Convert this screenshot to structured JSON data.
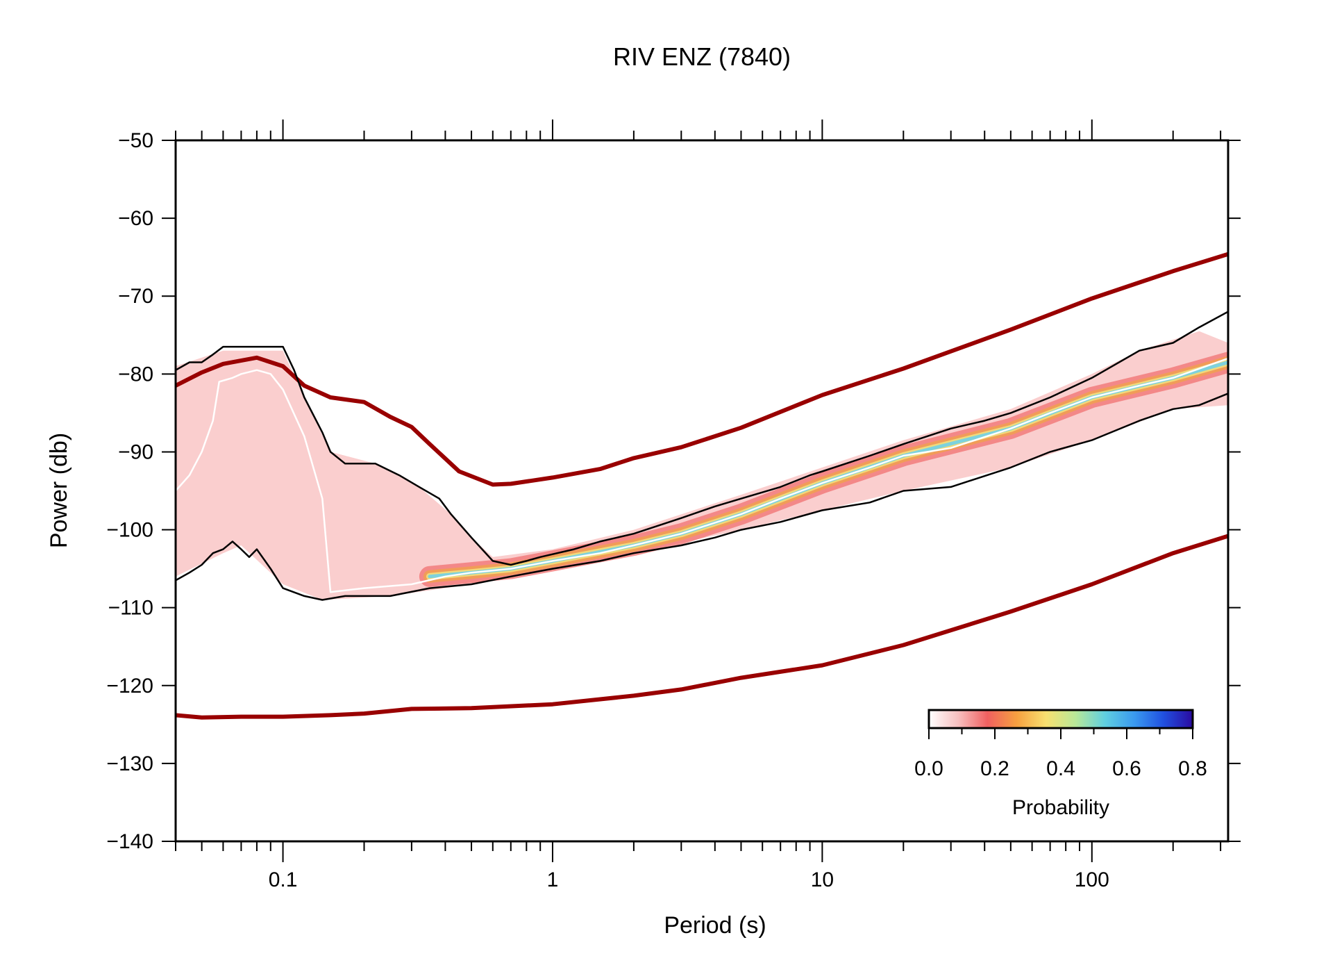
{
  "chart_data": {
    "type": "line",
    "title": "RIV ENZ (7840)",
    "xlabel": "Period (s)",
    "ylabel": "Power (db)",
    "x_scale": "log",
    "xlim": [
      0.04,
      320
    ],
    "ylim": [
      -140,
      -50
    ],
    "x_tick_values": [
      0.1,
      1,
      10,
      100
    ],
    "x_tick_labels": [
      "0.1",
      "1",
      "10",
      "100"
    ],
    "y_ticks": [
      -50,
      -60,
      -70,
      -80,
      -90,
      -100,
      -110,
      -120,
      -130,
      -140
    ],
    "y_tick_labels": [
      "−50",
      "−60",
      "−70",
      "−80",
      "−90",
      "−100",
      "−110",
      "−120",
      "−130",
      "−140"
    ],
    "grid": false,
    "series": [
      {
        "role": "high-noise-model",
        "color": "#990000",
        "points": [
          [
            0.04,
            -81.5
          ],
          [
            0.05,
            -79.8
          ],
          [
            0.06,
            -78.7
          ],
          [
            0.08,
            -77.9
          ],
          [
            0.1,
            -79
          ],
          [
            0.12,
            -81.5
          ],
          [
            0.15,
            -83
          ],
          [
            0.2,
            -83.6
          ],
          [
            0.25,
            -85.5
          ],
          [
            0.3,
            -86.8
          ],
          [
            0.35,
            -89
          ],
          [
            0.45,
            -92.5
          ],
          [
            0.6,
            -94.2
          ],
          [
            0.7,
            -94.1
          ],
          [
            1,
            -93.3
          ],
          [
            1.5,
            -92.2
          ],
          [
            2,
            -90.8
          ],
          [
            3,
            -89.4
          ],
          [
            5,
            -86.9
          ],
          [
            10,
            -82.7
          ],
          [
            20,
            -79.3
          ],
          [
            50,
            -74.3
          ],
          [
            100,
            -70.3
          ],
          [
            200,
            -66.8
          ],
          [
            320,
            -64.6
          ]
        ]
      },
      {
        "role": "low-noise-model",
        "color": "#990000",
        "points": [
          [
            0.04,
            -123.8
          ],
          [
            0.05,
            -124.1
          ],
          [
            0.07,
            -124
          ],
          [
            0.1,
            -124
          ],
          [
            0.15,
            -123.8
          ],
          [
            0.2,
            -123.6
          ],
          [
            0.3,
            -123
          ],
          [
            0.5,
            -122.9
          ],
          [
            1,
            -122.4
          ],
          [
            2,
            -121.3
          ],
          [
            3,
            -120.5
          ],
          [
            5,
            -119
          ],
          [
            10,
            -117.4
          ],
          [
            20,
            -114.8
          ],
          [
            50,
            -110.5
          ],
          [
            100,
            -107
          ],
          [
            200,
            -103
          ],
          [
            320,
            -100.8
          ]
        ]
      },
      {
        "role": "percentile-upper",
        "color": "#000000",
        "points": [
          [
            0.04,
            -79.5
          ],
          [
            0.045,
            -78.5
          ],
          [
            0.05,
            -78.5
          ],
          [
            0.055,
            -77.5
          ],
          [
            0.06,
            -76.5
          ],
          [
            0.07,
            -76.5
          ],
          [
            0.09,
            -76.5
          ],
          [
            0.1,
            -76.5
          ],
          [
            0.11,
            -79.5
          ],
          [
            0.12,
            -83
          ],
          [
            0.14,
            -87.5
          ],
          [
            0.15,
            -90
          ],
          [
            0.17,
            -91.5
          ],
          [
            0.22,
            -91.5
          ],
          [
            0.27,
            -93
          ],
          [
            0.32,
            -94.5
          ],
          [
            0.38,
            -96
          ],
          [
            0.42,
            -98
          ],
          [
            0.5,
            -101
          ],
          [
            0.6,
            -104
          ],
          [
            0.7,
            -104.5
          ],
          [
            0.8,
            -104
          ],
          [
            0.9,
            -103.5
          ],
          [
            1.2,
            -102.5
          ],
          [
            1.5,
            -101.5
          ],
          [
            2,
            -100.5
          ],
          [
            3,
            -98.5
          ],
          [
            4,
            -97
          ],
          [
            5,
            -96
          ],
          [
            7,
            -94.5
          ],
          [
            9,
            -93
          ],
          [
            10,
            -92.5
          ],
          [
            15,
            -90.5
          ],
          [
            20,
            -89
          ],
          [
            30,
            -87
          ],
          [
            40,
            -86
          ],
          [
            50,
            -85
          ],
          [
            70,
            -83
          ],
          [
            100,
            -80.5
          ],
          [
            150,
            -77
          ],
          [
            200,
            -76
          ],
          [
            250,
            -74
          ],
          [
            320,
            -72
          ]
        ]
      },
      {
        "role": "percentile-lower",
        "color": "#000000",
        "points": [
          [
            0.04,
            -106.5
          ],
          [
            0.045,
            -105.5
          ],
          [
            0.05,
            -104.5
          ],
          [
            0.055,
            -103
          ],
          [
            0.06,
            -102.5
          ],
          [
            0.065,
            -101.5
          ],
          [
            0.07,
            -102.5
          ],
          [
            0.075,
            -103.5
          ],
          [
            0.08,
            -102.5
          ],
          [
            0.09,
            -105
          ],
          [
            0.1,
            -107.5
          ],
          [
            0.12,
            -108.5
          ],
          [
            0.14,
            -109
          ],
          [
            0.17,
            -108.5
          ],
          [
            0.25,
            -108.5
          ],
          [
            0.35,
            -107.5
          ],
          [
            0.5,
            -107
          ],
          [
            0.7,
            -106
          ],
          [
            1,
            -105
          ],
          [
            1.5,
            -104
          ],
          [
            2,
            -103
          ],
          [
            3,
            -102
          ],
          [
            4,
            -101
          ],
          [
            5,
            -100
          ],
          [
            7,
            -99
          ],
          [
            10,
            -97.5
          ],
          [
            15,
            -96.5
          ],
          [
            20,
            -95
          ],
          [
            30,
            -94.5
          ],
          [
            50,
            -92
          ],
          [
            70,
            -90
          ],
          [
            100,
            -88.5
          ],
          [
            150,
            -86
          ],
          [
            200,
            -84.5
          ],
          [
            250,
            -84
          ],
          [
            320,
            -82.5
          ]
        ]
      },
      {
        "role": "mode",
        "color": "#ffffff",
        "points": [
          [
            0.04,
            -95
          ],
          [
            0.045,
            -93
          ],
          [
            0.05,
            -90
          ],
          [
            0.055,
            -86
          ],
          [
            0.058,
            -81
          ],
          [
            0.065,
            -80.5
          ],
          [
            0.07,
            -80
          ],
          [
            0.08,
            -79.5
          ],
          [
            0.09,
            -80
          ],
          [
            0.1,
            -82
          ],
          [
            0.12,
            -88
          ],
          [
            0.14,
            -96
          ],
          [
            0.15,
            -108
          ],
          [
            0.2,
            -107.5
          ],
          [
            0.3,
            -107
          ],
          [
            0.4,
            -106
          ],
          [
            0.5,
            -105.5
          ],
          [
            0.7,
            -105
          ],
          [
            1,
            -104
          ],
          [
            1.5,
            -103
          ],
          [
            2,
            -102
          ],
          [
            3,
            -100.5
          ],
          [
            5,
            -98
          ],
          [
            7,
            -96
          ],
          [
            10,
            -94
          ],
          [
            15,
            -92
          ],
          [
            20,
            -90.5
          ],
          [
            30,
            -89.5
          ],
          [
            50,
            -87
          ],
          [
            70,
            -85
          ],
          [
            100,
            -83
          ],
          [
            150,
            -81.5
          ],
          [
            200,
            -80.5
          ],
          [
            320,
            -78
          ]
        ]
      }
    ],
    "pdf_band": {
      "role": "probability-density",
      "upper": [
        [
          0.04,
          -79
        ],
        [
          0.06,
          -77
        ],
        [
          0.1,
          -77
        ],
        [
          0.12,
          -83
        ],
        [
          0.15,
          -90
        ],
        [
          0.22,
          -91.5
        ],
        [
          0.32,
          -94.5
        ],
        [
          0.42,
          -98
        ],
        [
          0.5,
          -101
        ],
        [
          0.6,
          -103.5
        ],
        [
          1,
          -102.5
        ],
        [
          2,
          -100
        ],
        [
          5,
          -95.5
        ],
        [
          10,
          -92
        ],
        [
          20,
          -88.5
        ],
        [
          50,
          -84.5
        ],
        [
          100,
          -80
        ],
        [
          150,
          -77
        ],
        [
          250,
          -74.5
        ],
        [
          320,
          -76
        ]
      ],
      "lower": [
        [
          0.04,
          -106
        ],
        [
          0.06,
          -103
        ],
        [
          0.07,
          -102
        ],
        [
          0.1,
          -107
        ],
        [
          0.14,
          -109
        ],
        [
          0.25,
          -108.5
        ],
        [
          0.5,
          -107
        ],
        [
          1,
          -105
        ],
        [
          2,
          -103
        ],
        [
          5,
          -100
        ],
        [
          10,
          -97.5
        ],
        [
          20,
          -95
        ],
        [
          50,
          -92
        ],
        [
          100,
          -88.5
        ],
        [
          200,
          -84.5
        ],
        [
          320,
          -84
        ]
      ],
      "ridge": [
        [
          0.35,
          -106
        ],
        [
          0.5,
          -105.5
        ],
        [
          0.7,
          -105
        ],
        [
          1,
          -104
        ],
        [
          2,
          -102
        ],
        [
          3,
          -100.5
        ],
        [
          5,
          -98
        ],
        [
          10,
          -94
        ],
        [
          20,
          -90.5
        ],
        [
          50,
          -87
        ],
        [
          100,
          -83
        ],
        [
          200,
          -80.5
        ],
        [
          320,
          -78.5
        ]
      ]
    },
    "colorbar": {
      "label": "Probability",
      "range": [
        0.0,
        0.8
      ],
      "ticks": [
        "0.0",
        "0.2",
        "0.4",
        "0.6",
        "0.8"
      ],
      "colors": [
        "#ffffff",
        "#f8c0c0",
        "#f06060",
        "#f6a040",
        "#f8e070",
        "#b8e898",
        "#60d0e0",
        "#3a9af0",
        "#2050e0",
        "#2a0aa0"
      ]
    },
    "legend_placement": "bottom-right"
  }
}
